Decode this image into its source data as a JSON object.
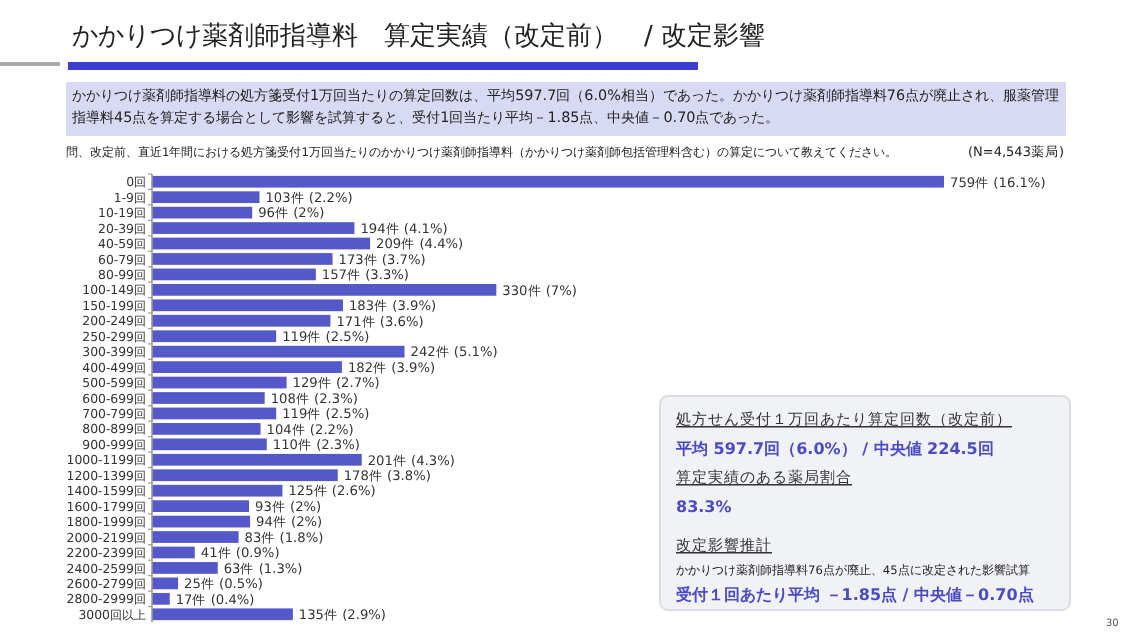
{
  "chart_data": {
    "type": "bar",
    "orientation": "horizontal",
    "title": "かかりつけ薬剤師指導料　算定実績（改定前）　/ 改定影響",
    "subtitle": "かかりつけ薬剤師指導料の処方箋受付1万回当たりの算定回数は、平均597.7回（6.0%相当）であった。かかりつけ薬剤師指導料76点が廃止され、服薬管理指導料45点を算定する場合として影響を試算すると、受付1回当たり平均－1.85点、中央値－0.70点であった。",
    "annotations": [
      "問、改定前、直近1年間における処方箋受付1万回当たりのかかりつけ薬剤師指導料（かかりつけ薬剤師包括管理料含む）の算定について教えてください。",
      "(N=4,543薬局)",
      "処方せん受付１万回あたり算定回数（改定前）",
      "平均 597.7回（6.0%） / 中央値 224.5回",
      "算定実績のある薬局割合",
      "83.3%",
      "改定影響推計",
      "かかりつけ薬剤師指導料76点が廃止、45点に改定された影響試算",
      "受付１回あたり平均 －1.85点 / 中央値－0.70点",
      "30"
    ],
    "categories": [
      "0回",
      "1-9回",
      "10-19回",
      "20-39回",
      "40-59回",
      "60-79回",
      "80-99回",
      "100-149回",
      "150-199回",
      "200-249回",
      "250-299回",
      "300-399回",
      "400-499回",
      "500-599回",
      "600-699回",
      "700-799回",
      "800-899回",
      "900-999回",
      "1000-1199回",
      "1200-1399回",
      "1400-1599回",
      "1600-1799回",
      "1800-1999回",
      "2000-2199回",
      "2200-2399回",
      "2400-2599回",
      "2600-2799回",
      "2800-2999回",
      "3000回以上"
    ],
    "values": [
      759,
      103,
      96,
      194,
      209,
      173,
      157,
      330,
      183,
      171,
      119,
      242,
      182,
      129,
      108,
      119,
      104,
      110,
      201,
      178,
      125,
      93,
      94,
      83,
      41,
      63,
      25,
      17,
      135
    ],
    "value_labels": [
      "759件 (16.1%)",
      "103件 (2.2%)",
      "96件 (2%)",
      "194件 (4.1%)",
      "209件 (4.4%)",
      "173件 (3.7%)",
      "157件 (3.3%)",
      "330件 (7%)",
      "183件 (3.9%)",
      "171件 (3.6%)",
      "119件 (2.5%)",
      "242件 (5.1%)",
      "182件 (3.9%)",
      "129件 (2.7%)",
      "108件 (2.3%)",
      "119件 (2.5%)",
      "104件 (2.2%)",
      "110件 (2.3%)",
      "201件 (4.3%)",
      "178件 (3.8%)",
      "125件 (2.6%)",
      "93件 (2%)",
      "94件 (2%)",
      "83件 (1.8%)",
      "41件 (0.9%)",
      "63件 (1.3%)",
      "25件 (0.5%)",
      "17件 (0.4%)",
      "135件 (2.9%)"
    ],
    "color": "#5558c8"
  }
}
